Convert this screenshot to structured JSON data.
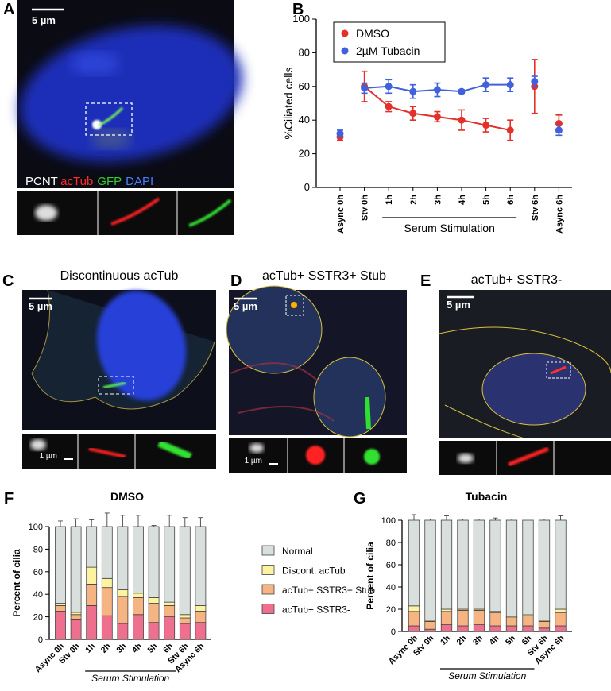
{
  "panels": {
    "A": {
      "label": "A",
      "scale_bar": "5 µm",
      "stains": [
        {
          "text": "PCNT",
          "color": "#ffffff"
        },
        {
          "text": "acTub",
          "color": "#ff2a2a"
        },
        {
          "text": "GFP",
          "color": "#33cc33"
        },
        {
          "text": "DAPI",
          "color": "#4a7dff"
        }
      ]
    },
    "C": {
      "label": "C",
      "title": "Discontinuous acTub",
      "scale_bar": "5 µm",
      "inset_scale_bar": "1 µm"
    },
    "D": {
      "label": "D",
      "title": "acTub+ SSTR3+ Stub",
      "scale_bar": "5 µm",
      "inset_scale_bar": "1 µm"
    },
    "E": {
      "label": "E",
      "title": "acTub+ SSTR3-",
      "scale_bar": "5 µm"
    }
  },
  "chart_data": [
    {
      "panel_label": "B",
      "type": "line",
      "ylabel": "%Ciliated cells",
      "categories": [
        "Async 0h",
        "Stv 0h",
        "1h",
        "2h",
        "3h",
        "4h",
        "5h",
        "6h",
        "Stv 6h",
        "Async 6h"
      ],
      "series": [
        {
          "name": "DMSO",
          "color": "#e3302a",
          "values": [
            30,
            60,
            48,
            44,
            42,
            40,
            37,
            34,
            60,
            38
          ],
          "errors": [
            2,
            9,
            3,
            4,
            3,
            6,
            4,
            6,
            16,
            5
          ]
        },
        {
          "name": "2µM Tubacin",
          "color": "#4160dc",
          "values": [
            32,
            59,
            60,
            57,
            58,
            57,
            61,
            61,
            63,
            34
          ],
          "errors": [
            2,
            3,
            4,
            4,
            4,
            1,
            4,
            4,
            3,
            3
          ]
        }
      ],
      "connected": [
        1,
        7
      ],
      "ylim": [
        0,
        100
      ],
      "yticks": [
        0,
        20,
        40,
        60,
        80,
        100
      ],
      "annotation": "Serum Stimulation",
      "annotation_span": [
        2,
        7
      ],
      "legend": "upper left"
    },
    {
      "panel_label": "F",
      "type": "stacked_bar",
      "title": "DMSO",
      "ylabel": "Percent of cilia",
      "categories": [
        "Async 0h",
        "Stv 0h",
        "1h",
        "2h",
        "3h",
        "4h",
        "5h",
        "6h",
        "Stv 6h",
        "Async 6h"
      ],
      "series": [
        {
          "name": "acTub+ SSTR3-",
          "color": "#ef6f8e",
          "values": [
            25,
            18,
            30,
            21,
            14,
            22,
            15,
            20,
            14,
            15
          ],
          "errors": [
            3,
            3,
            10,
            5,
            6,
            6,
            4,
            6,
            3,
            4
          ]
        },
        {
          "name": "acTub+ SSTR3+ Stub",
          "color": "#f6b483",
          "values": [
            5,
            4,
            19,
            25,
            24,
            15,
            17,
            10,
            5,
            10
          ],
          "errors": [
            2,
            2,
            6,
            6,
            4,
            3,
            3,
            2,
            3,
            3
          ]
        },
        {
          "name": "Discont. acTub",
          "color": "#fbf3a0",
          "values": [
            2,
            2,
            15,
            8,
            6,
            4,
            5,
            3,
            3,
            5
          ],
          "errors": [
            1,
            1,
            2,
            3,
            2,
            2,
            2,
            1,
            2,
            3
          ]
        },
        {
          "name": "Normal",
          "color": "#d8dfdd",
          "values": [
            68,
            76,
            36,
            46,
            56,
            59,
            63,
            67,
            78,
            70
          ],
          "errors": [
            5,
            7,
            6,
            12,
            10,
            10,
            1,
            10,
            8,
            8
          ]
        }
      ],
      "ylim": [
        0,
        100
      ],
      "yticks": [
        0,
        20,
        40,
        60,
        80,
        100
      ],
      "annotation": "Serum Stimulation",
      "annotation_span": [
        2,
        7
      ],
      "legend": "right"
    },
    {
      "panel_label": "G",
      "type": "stacked_bar",
      "title": "Tubacin",
      "ylabel": "Percent of cilia",
      "categories": [
        "Async 0h",
        "Stv 0h",
        "1h",
        "2h",
        "3h",
        "4h",
        "5h",
        "6h",
        "Stv 6h",
        "Async 6h"
      ],
      "series": [
        {
          "color": "#ef6f8e",
          "values": [
            5,
            2,
            6,
            5,
            6,
            5,
            5,
            5,
            3,
            5
          ],
          "errors": [
            2,
            1,
            2,
            1,
            1,
            1,
            1,
            1,
            1,
            2
          ]
        },
        {
          "color": "#f6b483",
          "values": [
            13,
            7,
            12,
            14,
            13,
            12,
            8,
            9,
            6,
            12
          ],
          "errors": [
            3,
            1,
            2,
            1,
            2,
            2,
            1,
            1,
            1,
            3
          ]
        },
        {
          "color": "#fbf3a0",
          "values": [
            5,
            1,
            2,
            1,
            1,
            1,
            1,
            1,
            1,
            3
          ],
          "errors": [
            3,
            1,
            1,
            1,
            1,
            1,
            1,
            1,
            1,
            2
          ]
        },
        {
          "color": "#d8dfdd",
          "values": [
            77,
            90,
            80,
            80,
            80,
            82,
            86,
            85,
            90,
            80
          ],
          "errors": [
            5,
            1,
            4,
            1,
            1,
            2,
            1,
            1,
            1,
            4
          ]
        }
      ],
      "ylim": [
        0,
        100
      ],
      "yticks": [
        0,
        20,
        40,
        60,
        80,
        100
      ],
      "annotation": "Serum Stimulation",
      "annotation_span": [
        2,
        7
      ]
    }
  ]
}
